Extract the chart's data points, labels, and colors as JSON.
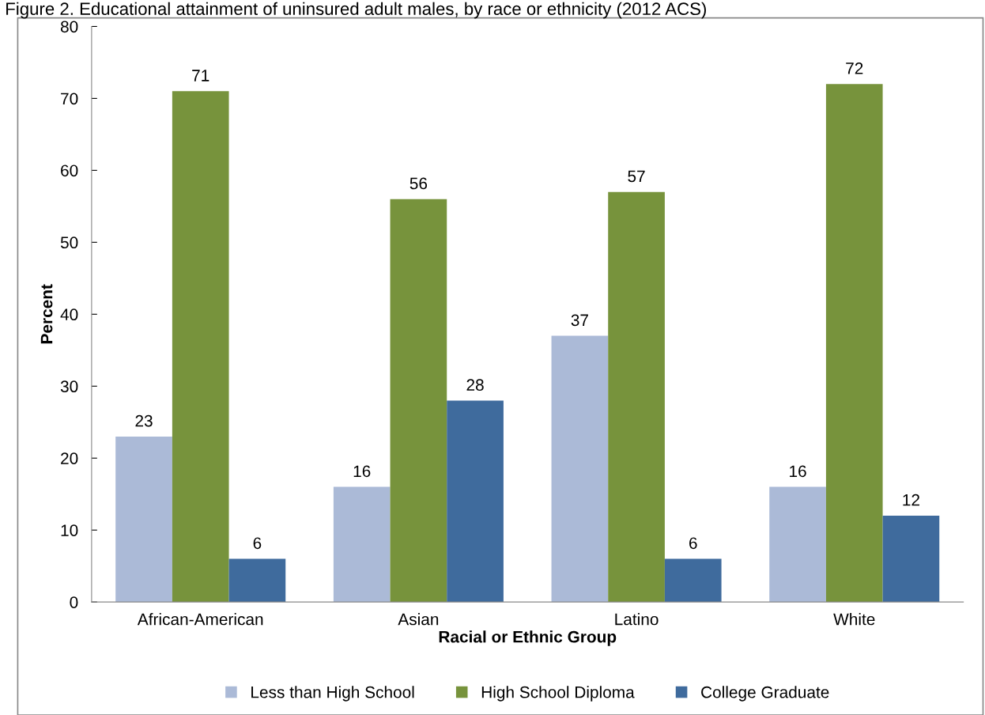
{
  "chart_data": {
    "type": "bar",
    "title": "Figure 2. Educational attainment of uninsured adult males, by race or ethnicity (2012 ACS)",
    "xlabel": "Racial or Ethnic Group",
    "ylabel": "Percent",
    "categories": [
      "African-American",
      "Asian",
      "Latino",
      "White"
    ],
    "series": [
      {
        "name": "Less than High School",
        "color": "#abbad7",
        "values": [
          23,
          16,
          37,
          16
        ]
      },
      {
        "name": "High School Diploma",
        "color": "#77933c",
        "values": [
          71,
          56,
          57,
          72
        ]
      },
      {
        "name": "College Graduate",
        "color": "#3f6b9d",
        "values": [
          6,
          28,
          6,
          12
        ]
      }
    ],
    "ylim": [
      0,
      80
    ],
    "yticks": [
      0,
      10,
      20,
      30,
      40,
      50,
      60,
      70,
      80
    ],
    "data_labels": true,
    "grid": false,
    "legend": "bottom"
  }
}
